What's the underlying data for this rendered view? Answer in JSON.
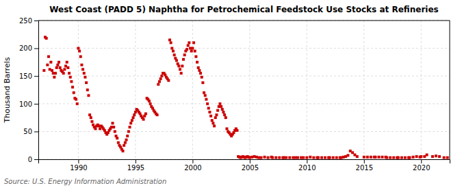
{
  "chart_data": {
    "type": "scatter",
    "title": "West Coast (PADD 5) Naphtha for Petrochemical Feedstock Use Stocks at Refineries",
    "y_label": "Thousand Barrels",
    "annotation": "Source: U.S. Energy Information Administration",
    "color": "#CC0000",
    "marker": "square",
    "grid": true,
    "xlim": [
      1986.5,
      2022.5
    ],
    "xticks": [
      1990,
      1995,
      2000,
      2005,
      2010,
      2015,
      2020
    ],
    "ylim": [
      0,
      250
    ],
    "yticks": [
      0,
      50,
      100,
      150,
      200,
      250
    ],
    "x": [
      1987.0,
      1987.1,
      1987.2,
      1987.3,
      1987.4,
      1987.5,
      1987.6,
      1987.7,
      1987.8,
      1987.9,
      1988.0,
      1988.1,
      1988.2,
      1988.3,
      1988.4,
      1988.5,
      1988.6,
      1988.7,
      1988.8,
      1988.9,
      1989.0,
      1989.1,
      1989.2,
      1989.3,
      1989.4,
      1989.5,
      1989.6,
      1989.7,
      1989.8,
      1989.9,
      1990.0,
      1990.1,
      1990.2,
      1990.3,
      1990.4,
      1990.5,
      1990.6,
      1990.7,
      1990.8,
      1990.9,
      1991.0,
      1991.1,
      1991.2,
      1991.3,
      1991.4,
      1991.5,
      1991.6,
      1991.7,
      1991.8,
      1991.9,
      1992.0,
      1992.1,
      1992.2,
      1992.3,
      1992.4,
      1992.5,
      1992.6,
      1992.7,
      1992.8,
      1992.9,
      1993.0,
      1993.1,
      1993.2,
      1993.3,
      1993.4,
      1993.5,
      1993.6,
      1993.7,
      1993.8,
      1993.9,
      1994.0,
      1994.1,
      1994.2,
      1994.3,
      1994.4,
      1994.5,
      1994.6,
      1994.7,
      1994.8,
      1994.9,
      1995.0,
      1995.1,
      1995.2,
      1995.3,
      1995.4,
      1995.5,
      1995.6,
      1995.7,
      1995.8,
      1995.9,
      1996.0,
      1996.1,
      1996.2,
      1996.3,
      1996.4,
      1996.5,
      1996.6,
      1996.7,
      1996.8,
      1996.9,
      1997.0,
      1997.1,
      1997.2,
      1997.3,
      1997.4,
      1997.5,
      1997.6,
      1997.7,
      1997.8,
      1997.9,
      1998.0,
      1998.1,
      1998.2,
      1998.3,
      1998.4,
      1998.5,
      1998.6,
      1998.7,
      1998.8,
      1998.9,
      1999.0,
      1999.1,
      1999.2,
      1999.3,
      1999.4,
      1999.5,
      1999.6,
      1999.7,
      1999.8,
      1999.9,
      2000.0,
      2000.1,
      2000.2,
      2000.3,
      2000.4,
      2000.5,
      2000.6,
      2000.7,
      2000.8,
      2000.9,
      2001.0,
      2001.1,
      2001.2,
      2001.3,
      2001.4,
      2001.5,
      2001.6,
      2001.7,
      2001.8,
      2001.9,
      2002.0,
      2002.1,
      2002.2,
      2002.3,
      2002.4,
      2002.5,
      2002.6,
      2002.7,
      2002.8,
      2002.9,
      2003.0,
      2003.1,
      2003.2,
      2003.3,
      2003.4,
      2003.5,
      2003.6,
      2003.7,
      2003.8,
      2003.9,
      2004.0,
      2004.1,
      2004.2,
      2004.3,
      2004.4,
      2004.5,
      2004.6,
      2004.7,
      2004.8,
      2004.9,
      2005.0,
      2005.2,
      2005.4,
      2005.6,
      2005.8,
      2006.0,
      2006.3,
      2006.6,
      2006.9,
      2007.0,
      2007.3,
      2007.6,
      2007.9,
      2008.0,
      2008.2,
      2008.5,
      2008.8,
      2009.0,
      2009.2,
      2009.5,
      2009.7,
      2010.0,
      2010.3,
      2010.6,
      2010.9,
      2011.0,
      2011.3,
      2011.6,
      2011.9,
      2012.0,
      2012.3,
      2012.6,
      2012.9,
      2013.0,
      2013.2,
      2013.4,
      2013.6,
      2013.8,
      2014.0,
      2014.2,
      2014.4,
      2015.0,
      2015.3,
      2015.6,
      2015.9,
      2016.0,
      2016.3,
      2016.6,
      2016.9,
      2017.0,
      2017.3,
      2017.6,
      2017.9,
      2018.0,
      2018.3,
      2018.6,
      2018.9,
      2019.0,
      2019.3,
      2019.6,
      2019.9,
      2020.0,
      2020.3,
      2020.5,
      2021.0,
      2021.3,
      2021.6,
      2022.0,
      2022.3
    ],
    "values": [
      160,
      220,
      218,
      170,
      185,
      162,
      175,
      160,
      155,
      148,
      155,
      165,
      170,
      175,
      165,
      160,
      158,
      155,
      162,
      168,
      175,
      165,
      155,
      148,
      140,
      130,
      120,
      110,
      108,
      100,
      200,
      195,
      185,
      170,
      162,
      155,
      148,
      138,
      125,
      115,
      80,
      75,
      68,
      62,
      58,
      55,
      60,
      62,
      60,
      55,
      60,
      58,
      55,
      52,
      48,
      45,
      48,
      52,
      55,
      58,
      65,
      58,
      50,
      42,
      38,
      30,
      25,
      22,
      18,
      15,
      25,
      30,
      35,
      42,
      50,
      58,
      65,
      70,
      75,
      80,
      85,
      90,
      88,
      85,
      82,
      78,
      75,
      72,
      78,
      82,
      110,
      108,
      105,
      100,
      95,
      92,
      88,
      85,
      82,
      80,
      135,
      140,
      145,
      150,
      155,
      155,
      152,
      148,
      145,
      142,
      215,
      210,
      200,
      195,
      188,
      182,
      178,
      172,
      168,
      162,
      155,
      168,
      180,
      188,
      195,
      198,
      205,
      210,
      200,
      195,
      200,
      210,
      195,
      185,
      175,
      165,
      160,
      155,
      148,
      138,
      120,
      115,
      108,
      100,
      92,
      85,
      78,
      70,
      65,
      60,
      75,
      80,
      88,
      95,
      100,
      95,
      90,
      85,
      80,
      75,
      55,
      50,
      48,
      45,
      42,
      45,
      48,
      52,
      55,
      52,
      5,
      4,
      3,
      4,
      5,
      4,
      3,
      4,
      5,
      4,
      3,
      4,
      5,
      4,
      3,
      3,
      4,
      3,
      4,
      3,
      3,
      3,
      3,
      3,
      3,
      3,
      3,
      3,
      3,
      3,
      3,
      3,
      4,
      3,
      3,
      3,
      3,
      3,
      3,
      3,
      3,
      3,
      3,
      3,
      4,
      5,
      7,
      15,
      12,
      8,
      5,
      4,
      4,
      4,
      4,
      4,
      4,
      4,
      4,
      3,
      3,
      3,
      3,
      3,
      3,
      3,
      3,
      3,
      4,
      5,
      4,
      5,
      5,
      8,
      5,
      6,
      5,
      3,
      3
    ]
  }
}
